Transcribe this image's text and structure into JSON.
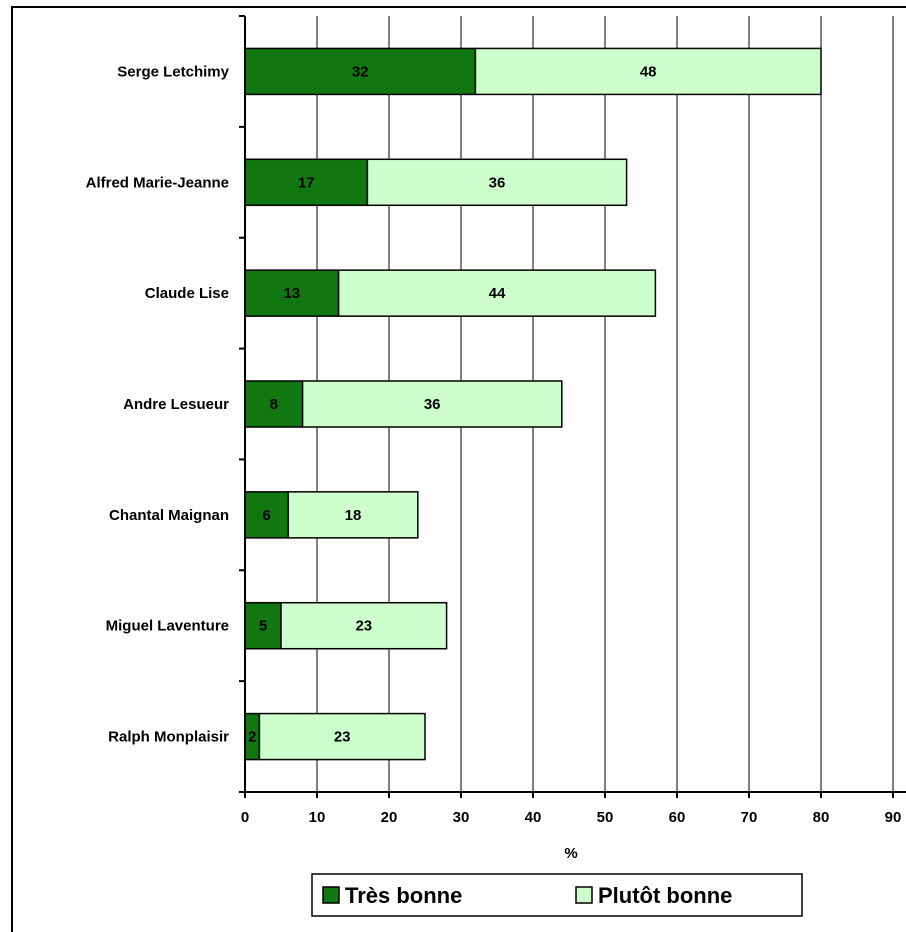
{
  "chart_data": {
    "type": "bar",
    "orientation": "horizontal",
    "stacked": true,
    "categories": [
      "Serge Letchimy",
      "Alfred Marie-Jeanne",
      "Claude Lise",
      "Andre Lesueur",
      "Chantal Maignan",
      "Miguel Laventure",
      "Ralph Monplaisir"
    ],
    "series": [
      {
        "name": "Très bonne",
        "values": [
          32,
          17,
          13,
          8,
          6,
          5,
          2
        ],
        "color": "#117711"
      },
      {
        "name": "Plutôt bonne",
        "values": [
          48,
          36,
          44,
          36,
          18,
          23,
          23
        ],
        "color": "#ccffcc"
      }
    ],
    "xlabel": "%",
    "ylabel": "",
    "xlim": [
      0,
      90
    ],
    "xticks": [
      "0",
      "10",
      "20",
      "30",
      "40",
      "50",
      "60",
      "70",
      "80",
      "90"
    ],
    "grid": "vertical",
    "legend": "bottom",
    "data_labels": true
  }
}
